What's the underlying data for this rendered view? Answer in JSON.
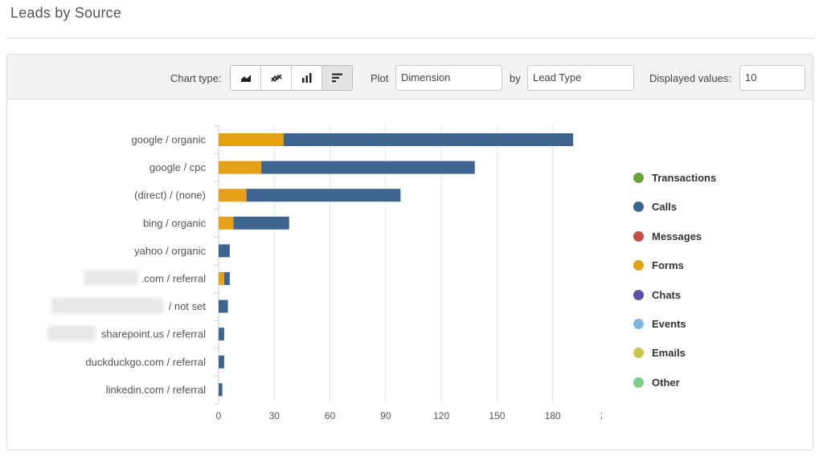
{
  "page": {
    "title": "Leads by Source"
  },
  "toolbar": {
    "chart_type_label": "Chart type:",
    "chart_type_buttons": [
      {
        "icon": "area-chart-icon",
        "active": false
      },
      {
        "icon": "line-chart-icon",
        "active": false
      },
      {
        "icon": "column-chart-icon",
        "active": false
      },
      {
        "icon": "bar-chart-icon",
        "active": true
      }
    ],
    "plot_label": "Plot",
    "plot_value": "Dimension",
    "by_label": "by",
    "by_value": "Lead Type",
    "displayed_values_label": "Displayed values:",
    "displayed_values": "10"
  },
  "chart_data": {
    "type": "bar",
    "orientation": "horizontal",
    "stacked": true,
    "categories": [
      "google / organic",
      "google / cpc",
      "(direct) / (none)",
      "bing / organic",
      "yahoo / organic",
      ".com / referral",
      "/ not set",
      "sharepoint.us / referral",
      "duckduckgo.com / referral",
      "linkedin.com / referral"
    ],
    "series": [
      {
        "name": "Forms",
        "color": "#e6a118",
        "values": [
          35,
          23,
          15,
          8,
          0,
          3,
          0,
          0,
          0,
          0
        ]
      },
      {
        "name": "Calls",
        "color": "#3d6590",
        "values": [
          156,
          115,
          83,
          30,
          6,
          3,
          5,
          3,
          3,
          2
        ]
      }
    ],
    "xlim": [
      0,
      210
    ],
    "xticks": [
      "0",
      "30",
      "60",
      "90",
      "120",
      "150",
      "180",
      "210"
    ],
    "grid": true,
    "legend": [
      {
        "name": "Transactions",
        "color": "#6aa33f"
      },
      {
        "name": "Calls",
        "color": "#3d6590"
      },
      {
        "name": "Messages",
        "color": "#c0504d"
      },
      {
        "name": "Forms",
        "color": "#e6a118"
      },
      {
        "name": "Chats",
        "color": "#5b50a3"
      },
      {
        "name": "Events",
        "color": "#7fb8dc"
      },
      {
        "name": "Emails",
        "color": "#c9c84a"
      },
      {
        "name": "Other",
        "color": "#7fcb8a"
      }
    ],
    "legend_position": "right"
  }
}
